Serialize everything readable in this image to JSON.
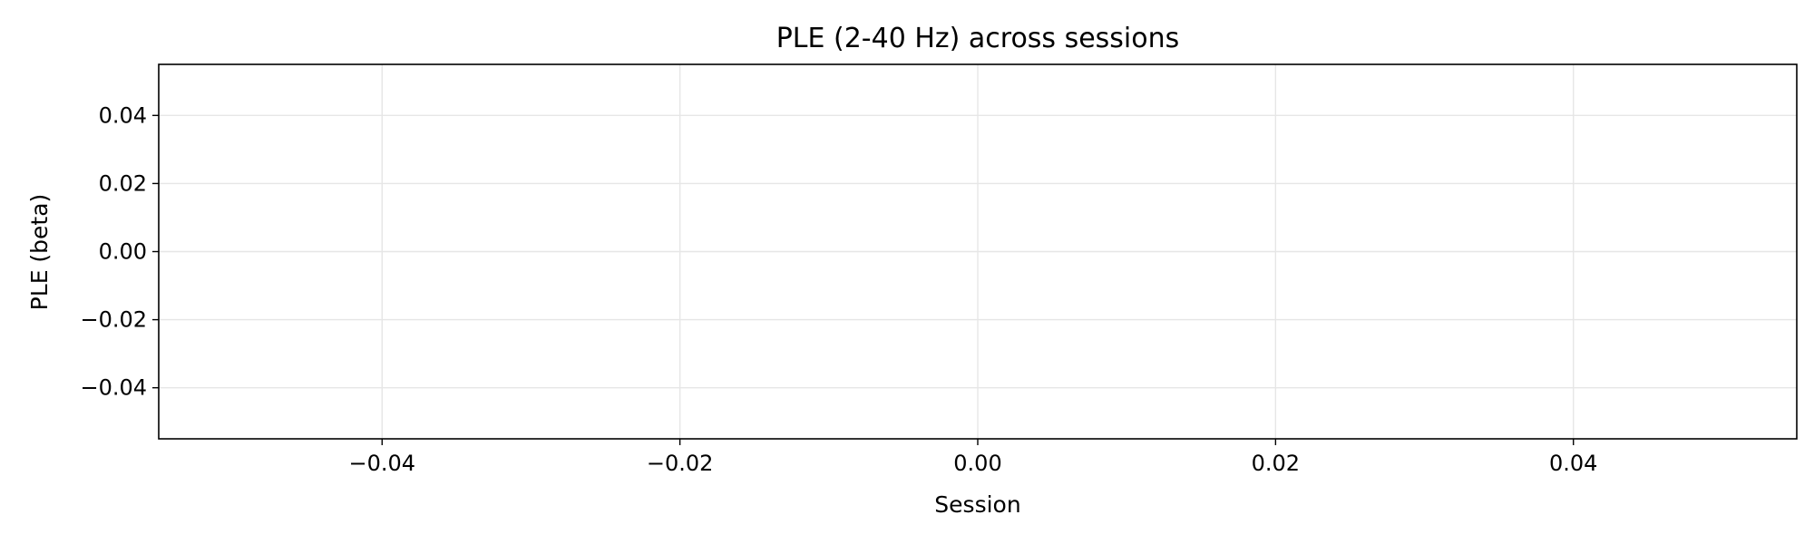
{
  "chart_data": {
    "type": "line",
    "title": "PLE (2-40 Hz) across sessions",
    "xlabel": "Session",
    "ylabel": "PLE (beta)",
    "xlim": [
      -0.055,
      0.055
    ],
    "ylim": [
      -0.055,
      0.055
    ],
    "x_ticks": [
      -0.04,
      -0.02,
      0.0,
      0.02,
      0.04
    ],
    "x_tick_labels": [
      "−0.04",
      "−0.02",
      "0.00",
      "0.02",
      "0.04"
    ],
    "y_ticks": [
      -0.04,
      -0.02,
      0.0,
      0.02,
      0.04
    ],
    "y_tick_labels": [
      "−0.04",
      "−0.02",
      "0.00",
      "0.02",
      "0.04"
    ],
    "grid": true,
    "series": [],
    "colors": {
      "grid": "#e6e6e6",
      "axes": "#000000",
      "background": "#ffffff"
    }
  }
}
